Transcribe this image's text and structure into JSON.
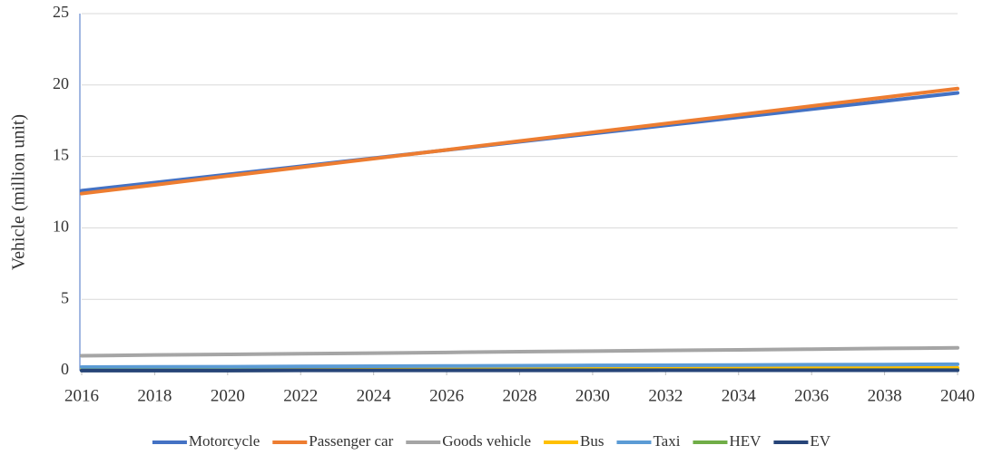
{
  "chart_data": {
    "type": "line",
    "y_label": "Vehicle (million unit)",
    "x": [
      2016,
      2018,
      2020,
      2022,
      2024,
      2026,
      2028,
      2030,
      2032,
      2034,
      2036,
      2038,
      2040
    ],
    "xlim": [
      2016,
      2040
    ],
    "xticks": [
      2016,
      2018,
      2020,
      2022,
      2024,
      2026,
      2028,
      2030,
      2032,
      2034,
      2036,
      2038,
      2040
    ],
    "ylim": [
      0,
      25
    ],
    "yticks": [
      0,
      5,
      10,
      15,
      20,
      25
    ],
    "grid": true,
    "legend": "bottom",
    "series": [
      {
        "name": "Motorcycle",
        "color": "#4472c4",
        "values": [
          12.6,
          13.17,
          13.74,
          14.31,
          14.88,
          15.45,
          16.03,
          16.6,
          17.17,
          17.74,
          18.31,
          18.88,
          19.45
        ]
      },
      {
        "name": "Passenger car",
        "color": "#ed7d31",
        "values": [
          12.4,
          13.01,
          13.63,
          14.24,
          14.85,
          15.46,
          16.08,
          16.69,
          17.3,
          17.91,
          18.53,
          19.14,
          19.75
        ]
      },
      {
        "name": "Goods vehicle",
        "color": "#a5a5a5",
        "values": [
          1.05,
          1.1,
          1.14,
          1.19,
          1.23,
          1.28,
          1.33,
          1.37,
          1.42,
          1.46,
          1.51,
          1.56,
          1.6
        ]
      },
      {
        "name": "Bus",
        "color": "#ffc000",
        "values": [
          0.15,
          0.15,
          0.16,
          0.16,
          0.17,
          0.17,
          0.17,
          0.18,
          0.18,
          0.19,
          0.19,
          0.2,
          0.2
        ]
      },
      {
        "name": "Taxi",
        "color": "#5b9bd5",
        "values": [
          0.25,
          0.27,
          0.28,
          0.3,
          0.32,
          0.33,
          0.35,
          0.37,
          0.38,
          0.4,
          0.42,
          0.43,
          0.45
        ]
      },
      {
        "name": "HEV",
        "color": "#70ad47",
        "values": [
          0.02,
          0.02,
          0.02,
          0.03,
          0.03,
          0.03,
          0.03,
          0.04,
          0.04,
          0.04,
          0.04,
          0.05,
          0.05
        ]
      },
      {
        "name": "EV",
        "color": "#264478",
        "values": [
          0.01,
          0.01,
          0.01,
          0.02,
          0.02,
          0.02,
          0.02,
          0.02,
          0.03,
          0.03,
          0.03,
          0.03,
          0.03
        ]
      }
    ]
  }
}
